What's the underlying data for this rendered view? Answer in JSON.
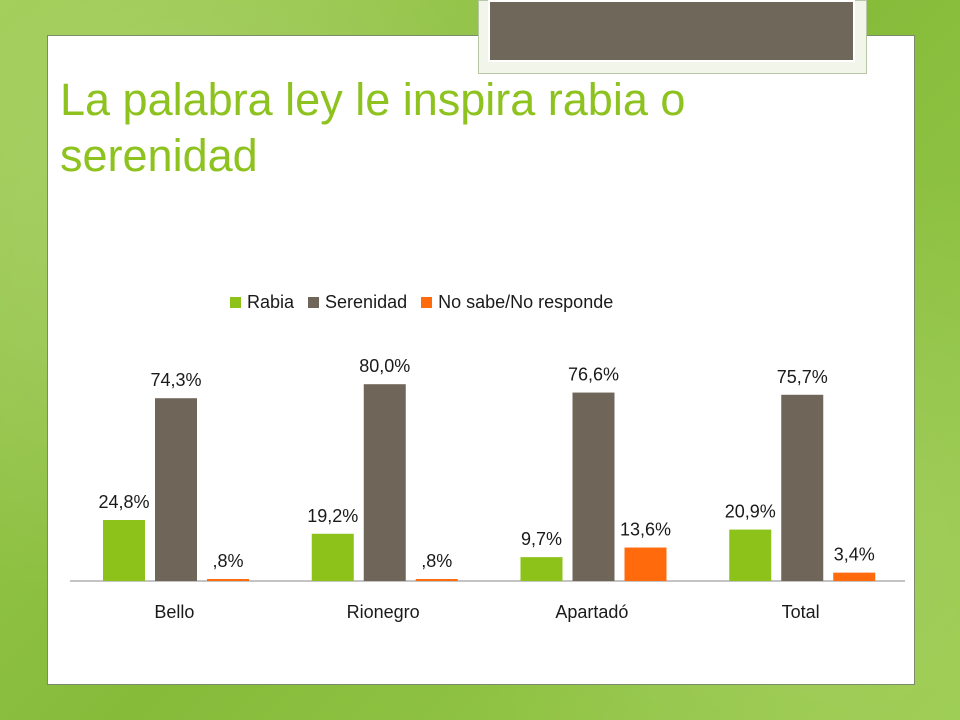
{
  "slide": {
    "title": "La palabra ley le inspira rabia o serenidad"
  },
  "chart_data": {
    "type": "bar",
    "categories": [
      "Bello",
      "Rionegro",
      "Apartadó",
      "Total"
    ],
    "series": [
      {
        "name": "Rabia",
        "color": "#8cc21a",
        "values": [
          24.8,
          19.2,
          9.7,
          20.9
        ],
        "labels": [
          "24,8%",
          "19,2%",
          "9,7%",
          "20,9%"
        ]
      },
      {
        "name": "Serenidad",
        "color": "#6f6558",
        "values": [
          74.3,
          80.0,
          76.6,
          75.7
        ],
        "labels": [
          "74,3%",
          "80,0%",
          "76,6%",
          "75,7%"
        ]
      },
      {
        "name": "No sabe/No responde",
        "color": "#ff6a0d",
        "values": [
          0.8,
          0.8,
          13.6,
          3.4
        ],
        "labels": [
          ",8%",
          ",8%",
          "13,6%",
          "3,4%"
        ]
      }
    ],
    "ylim": [
      0,
      100
    ],
    "grid": false,
    "legend": "top-center"
  }
}
